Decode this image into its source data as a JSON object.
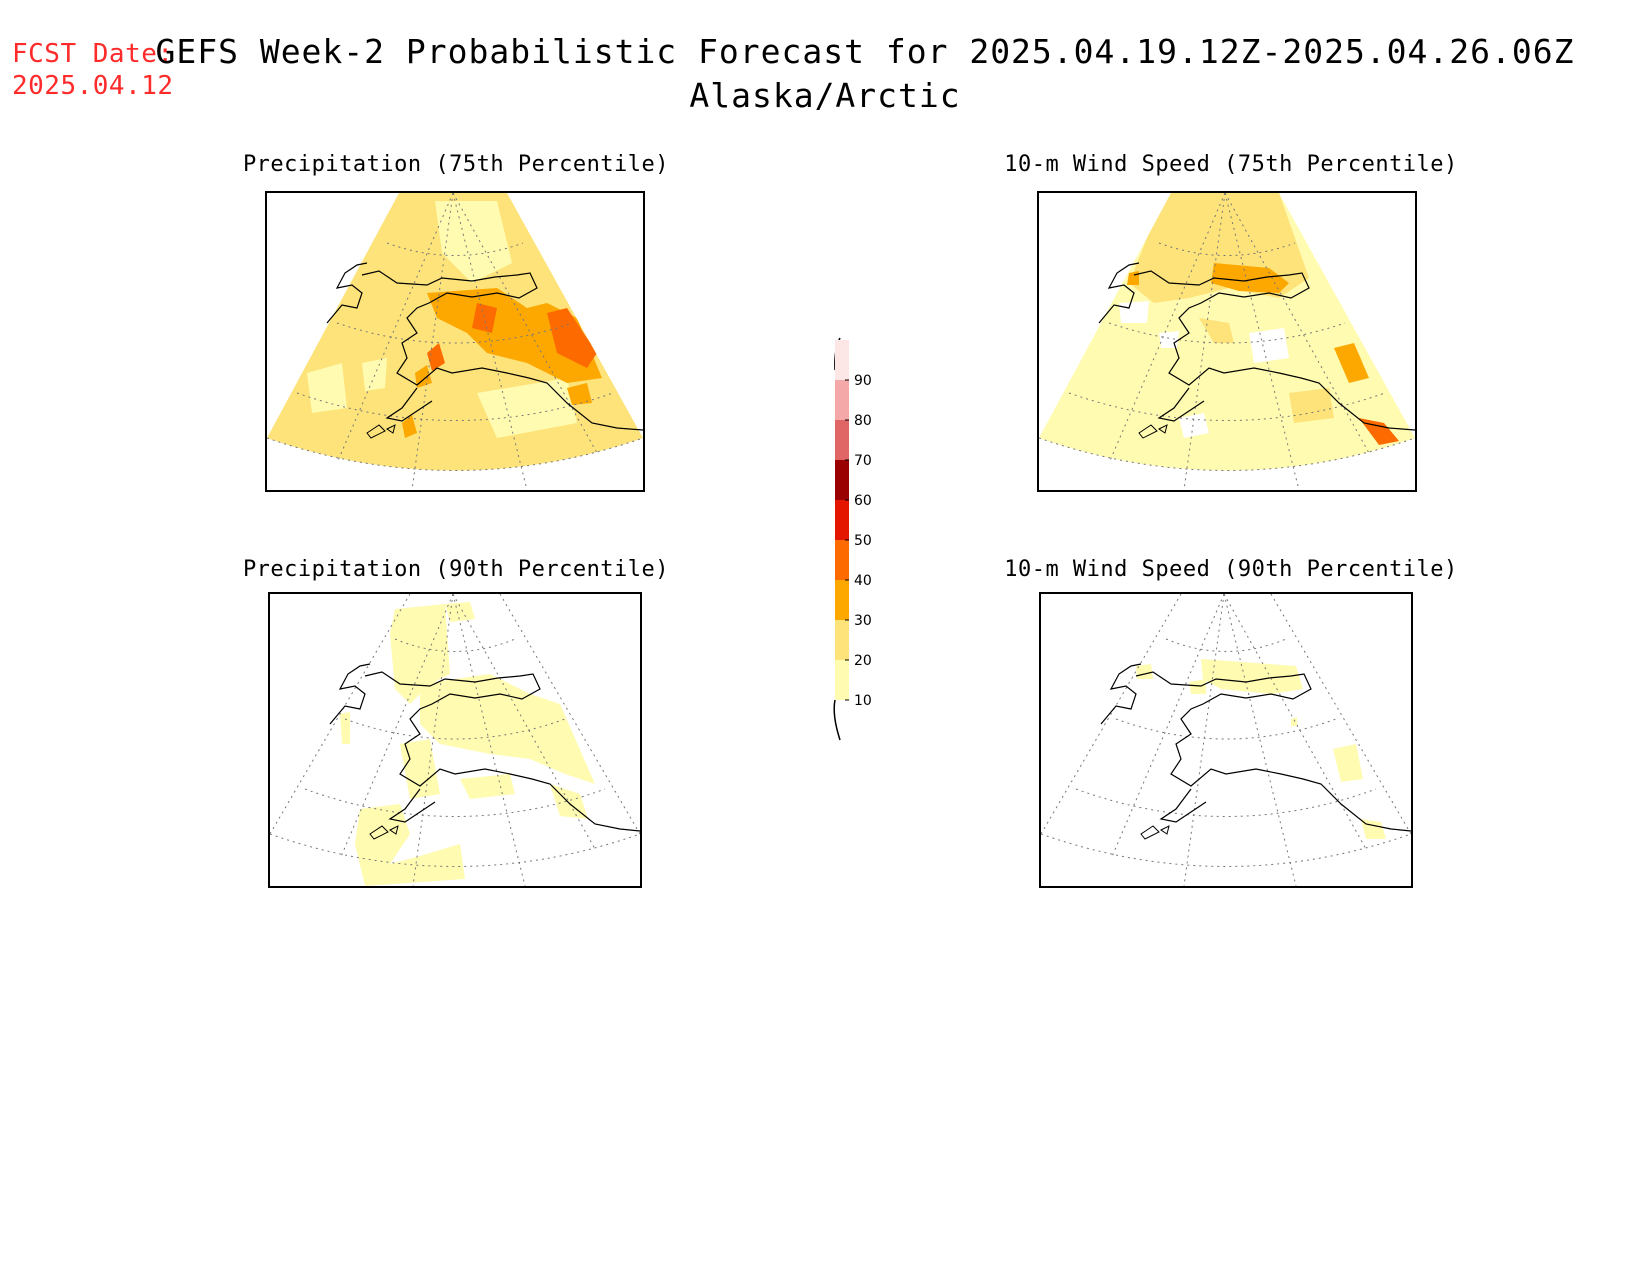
{
  "header": {
    "fcst_label": "FCST Date:",
    "fcst_date": "2025.04.12",
    "title_line1": "GEFS Week-2 Probabilistic Forecast for 2025.04.19.12Z-2025.04.26.06Z",
    "title_line2": "Alaska/Arctic"
  },
  "panels": {
    "precip75": {
      "title": "Precipitation (75th Percentile)"
    },
    "precip90": {
      "title": "Precipitation (90th Percentile)"
    },
    "wind75": {
      "title": "10-m Wind Speed (75th Percentile)"
    },
    "wind90": {
      "title": "10-m Wind Speed (90th Percentile)"
    }
  },
  "colorbar": {
    "levels": [
      "10",
      "20",
      "30",
      "40",
      "50",
      "60",
      "70",
      "80",
      "90"
    ],
    "colors": {
      "c10": "#fffbb0",
      "c20": "#fde37a",
      "c30": "#fca800",
      "c40": "#fd6b00",
      "c50": "#e51600",
      "c60": "#9b0000",
      "c70": "#e06666",
      "c80": "#f4a8a8",
      "c90": "#fde6e6"
    }
  }
}
